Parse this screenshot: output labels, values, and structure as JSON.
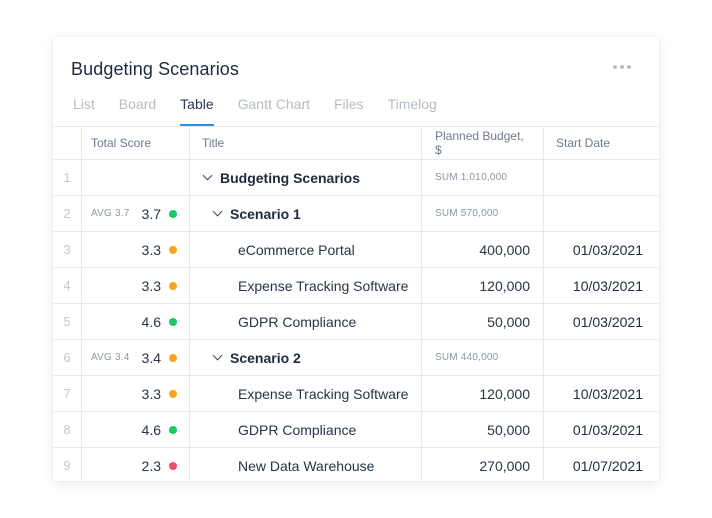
{
  "card": {
    "title": "Budgeting Scenarios"
  },
  "tabs": [
    {
      "label": "List",
      "active": false
    },
    {
      "label": "Board",
      "active": false
    },
    {
      "label": "Table",
      "active": true
    },
    {
      "label": "Gantt Chart",
      "active": false
    },
    {
      "label": "Files",
      "active": false
    },
    {
      "label": "Timelog",
      "active": false
    }
  ],
  "columns": {
    "num": "",
    "score": "Total Score",
    "title": "Title",
    "budget": "Planned Budget, $",
    "date": "Start Date"
  },
  "colors": {
    "green": "#17c964",
    "orange": "#f5a623",
    "red": "#f0506e",
    "accent": "#2f8be0"
  },
  "rows": [
    {
      "num": "1",
      "avg": "",
      "score": "",
      "status": "",
      "title": "Budgeting Scenarios",
      "budget": "SUM 1,010,000",
      "date": ""
    },
    {
      "num": "2",
      "avg": "AVG 3.7",
      "score": "3.7",
      "status": "green",
      "title": "Scenario 1",
      "budget": "SUM 570,000",
      "date": ""
    },
    {
      "num": "3",
      "avg": "",
      "score": "3.3",
      "status": "orange",
      "title": "eCommerce Portal",
      "budget": "400,000",
      "date": "01/03/2021"
    },
    {
      "num": "4",
      "avg": "",
      "score": "3.3",
      "status": "orange",
      "title": "Expense Tracking Software",
      "budget": "120,000",
      "date": "10/03/2021"
    },
    {
      "num": "5",
      "avg": "",
      "score": "4.6",
      "status": "green",
      "title": "GDPR Compliance",
      "budget": "50,000",
      "date": "01/03/2021"
    },
    {
      "num": "6",
      "avg": "AVG 3.4",
      "score": "3.4",
      "status": "orange",
      "title": "Scenario 2",
      "budget": "SUM 440,000",
      "date": ""
    },
    {
      "num": "7",
      "avg": "",
      "score": "3.3",
      "status": "orange",
      "title": "Expense Tracking Software",
      "budget": "120,000",
      "date": "10/03/2021"
    },
    {
      "num": "8",
      "avg": "",
      "score": "4.6",
      "status": "green",
      "title": "GDPR Compliance",
      "budget": "50,000",
      "date": "01/03/2021"
    },
    {
      "num": "9",
      "avg": "",
      "score": "2.3",
      "status": "red",
      "title": "New Data Warehouse",
      "budget": "270,000",
      "date": "01/07/2021"
    }
  ]
}
